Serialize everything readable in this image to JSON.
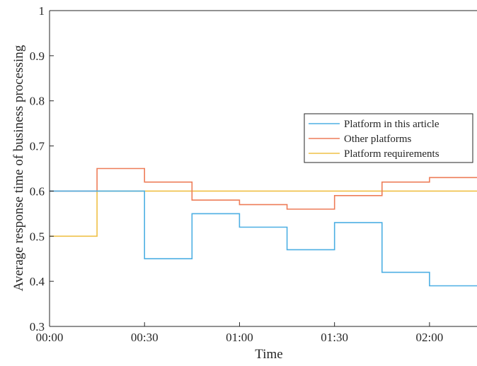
{
  "chart_data": {
    "type": "line",
    "step": true,
    "xlabel": "Time",
    "ylabel": "Average response time of business processing",
    "x_tick_labels": [
      "00:00",
      "00:30",
      "01:00",
      "01:30",
      "02:00"
    ],
    "x_tick_minutes": [
      0,
      30,
      60,
      90,
      120
    ],
    "xlim_minutes": [
      0,
      135
    ],
    "ylim": [
      0.3,
      1
    ],
    "y_ticks": [
      "0.3",
      "0.4",
      "0.5",
      "0.6",
      "0.7",
      "0.8",
      "0.9",
      "1"
    ],
    "legend_position": "right-center",
    "grid": false,
    "series": [
      {
        "name": "Platform in this article",
        "color": "#4DAFE3",
        "x_minutes": [
          0,
          15,
          30,
          45,
          60,
          75,
          90,
          105,
          120,
          135
        ],
        "values": [
          0.6,
          0.6,
          0.45,
          0.55,
          0.52,
          0.47,
          0.53,
          0.42,
          0.39,
          0.39
        ]
      },
      {
        "name": "Other platforms",
        "color": "#EE7D58",
        "x_minutes": [
          0,
          15,
          30,
          45,
          60,
          75,
          90,
          105,
          120,
          135
        ],
        "values": [
          0.6,
          0.65,
          0.62,
          0.58,
          0.57,
          0.56,
          0.59,
          0.62,
          0.63,
          0.63
        ]
      },
      {
        "name": "Platform requirements",
        "color": "#EFC046",
        "x_minutes": [
          0,
          15,
          135
        ],
        "values": [
          0.5,
          0.6,
          0.6
        ]
      }
    ]
  }
}
